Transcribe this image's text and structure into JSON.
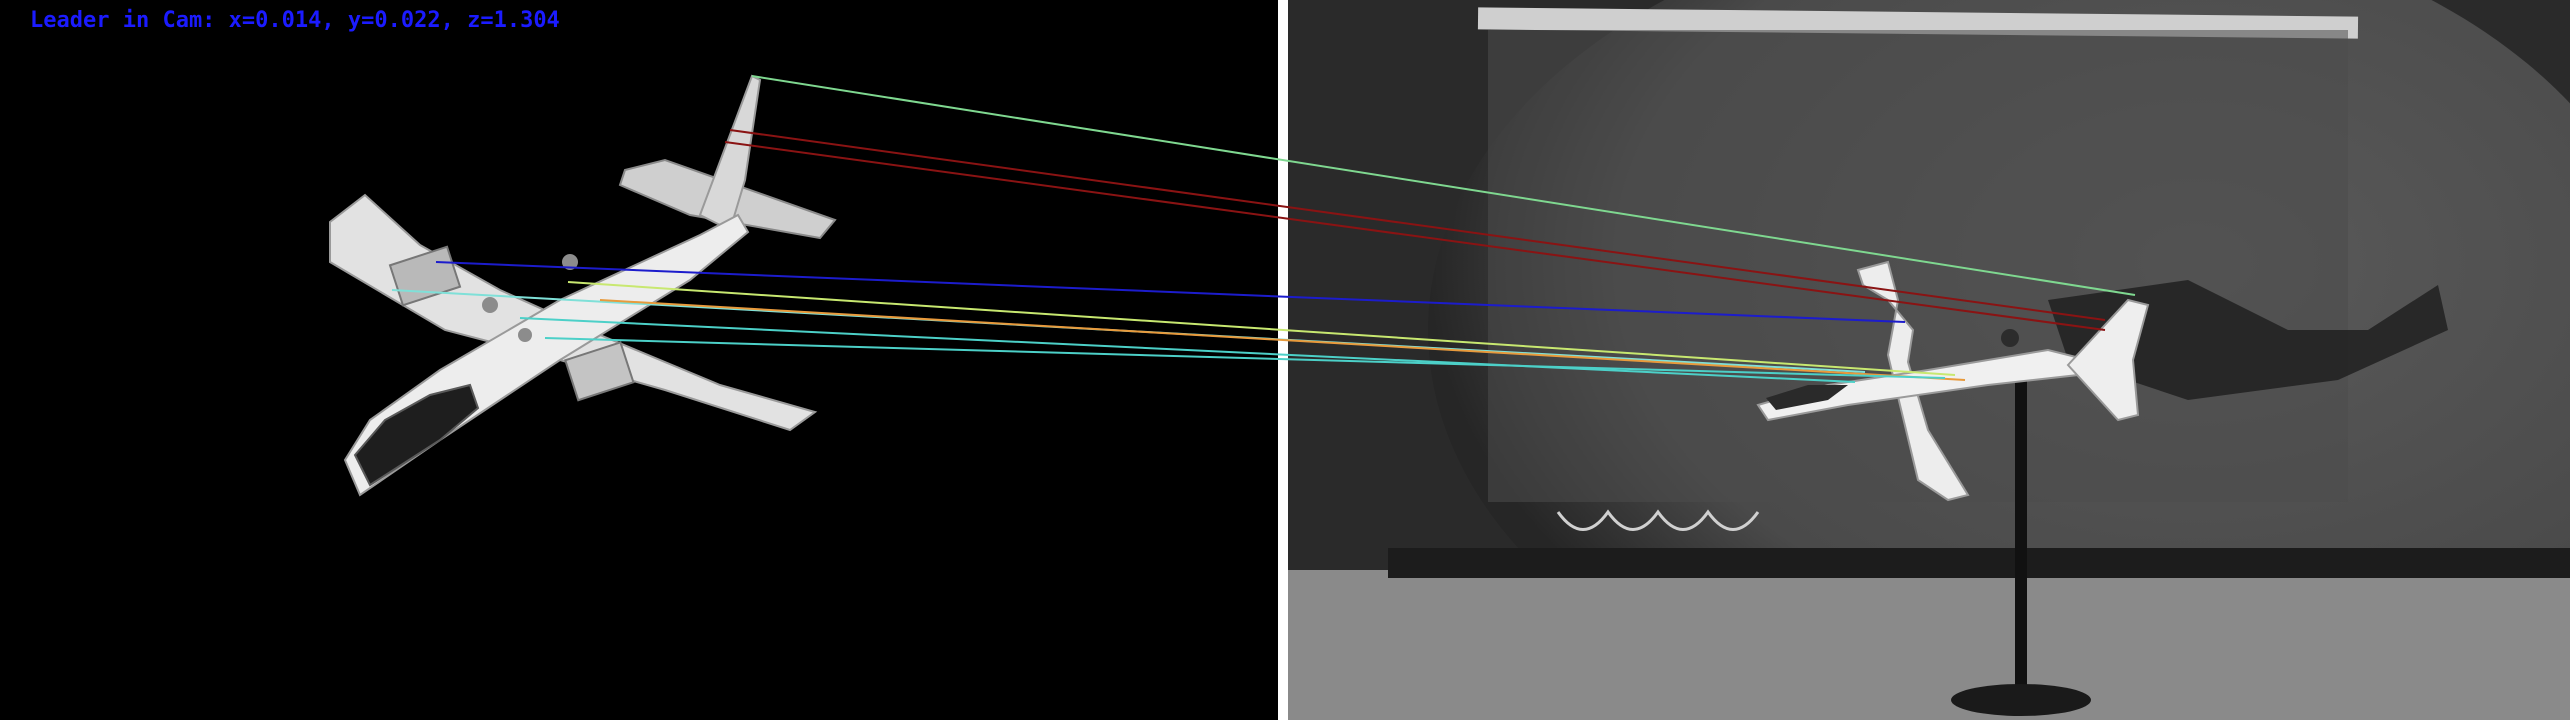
{
  "overlay": {
    "pose_readout": "Leader in Cam: x=0.014, y=0.022, z=1.304",
    "text_color": "#1b1bff"
  },
  "panes": {
    "left": "rendered-aircraft-model",
    "right": "camera-frame-grayscale"
  },
  "match_lines": [
    {
      "color": "#7fd890"
    },
    {
      "color": "#8a1313"
    },
    {
      "color": "#8a1313"
    },
    {
      "color": "#1c1ccc"
    },
    {
      "color": "#7fe0d8"
    },
    {
      "color": "#c8e870"
    },
    {
      "color": "#e89a3c"
    },
    {
      "color": "#4cd0c8"
    },
    {
      "color": "#4cd0c8"
    }
  ]
}
